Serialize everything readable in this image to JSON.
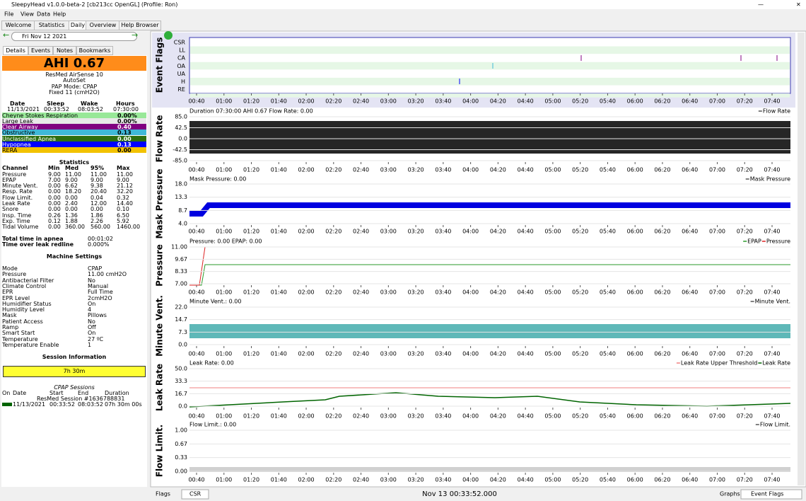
{
  "window_title": "SleepyHead v1.0.0-beta-2 [cb213cc OpenGL] (Profile: Ron)",
  "menu": [
    "File",
    "View",
    "Data",
    "Help"
  ],
  "tabs": [
    "Welcome",
    "Statistics",
    "Daily",
    "Overview",
    "Help Browser"
  ],
  "date": "Fri Nov 12 2021",
  "subtabs": [
    "Details",
    "Events",
    "Notes",
    "Bookmarks"
  ],
  "ahi": "AHI 0.67",
  "machine": [
    "ResMed AirSense 10",
    "AutoSet",
    "PAP Mode: CPAP",
    "Fixed 11 (cmH2O)"
  ],
  "sleep_table": {
    "headers": [
      "Date",
      "Sleep",
      "Wake",
      "Hours"
    ],
    "row": [
      "11/13/2021",
      "00:33:52",
      "08:03:52",
      "07:30:00"
    ]
  },
  "events": [
    {
      "name": "Cheyne Stokes Respiration",
      "value": "0.00%",
      "color": "#98e898"
    },
    {
      "name": "Large Leak",
      "value": "0.00%",
      "color": "#e8e8e8"
    },
    {
      "name": "Clear Airway",
      "value": "0.40",
      "color": "#800080"
    },
    {
      "name": "Obstructive",
      "value": "0.13",
      "color": "#3fb8d8"
    },
    {
      "name": "Unclassified Apnea",
      "value": "0.00",
      "color": "#2e6e10"
    },
    {
      "name": "Hypopnea",
      "value": "0.13",
      "color": "#0000ff"
    },
    {
      "name": "RERA",
      "value": "0.00",
      "color": "#f2c200"
    }
  ],
  "statistics": {
    "title": "Statistics",
    "headers": [
      "Channel",
      "Min",
      "Med",
      "95%",
      "Max"
    ],
    "rows": [
      [
        "Pressure",
        "9.00",
        "11.00",
        "11.00",
        "11.00"
      ],
      [
        "EPAP",
        "7.00",
        "9.00",
        "9.00",
        "9.00"
      ],
      [
        "Minute Vent.",
        "0.00",
        "6.62",
        "9.38",
        "21.12"
      ],
      [
        "Resp. Rate",
        "0.00",
        "18.20",
        "20.40",
        "32.20"
      ],
      [
        "Flow Limit.",
        "0.00",
        "0.00",
        "0.04",
        "0.32"
      ],
      [
        "Leak Rate",
        "0.00",
        "2.40",
        "12.00",
        "14.40"
      ],
      [
        "Snore",
        "0.00",
        "0.00",
        "0.00",
        "0.10"
      ],
      [
        "Insp. Time",
        "0.26",
        "1.36",
        "1.86",
        "6.50"
      ],
      [
        "Exp. Time",
        "0.12",
        "1.88",
        "2.26",
        "5.92"
      ],
      [
        "Tidal Volume",
        "0.00",
        "360.00",
        "560.00",
        "1460.00"
      ]
    ]
  },
  "totals": [
    [
      "Total time in apnea",
      "00:01:02"
    ],
    [
      "Time over leak redline",
      "0.000%"
    ]
  ],
  "settings": {
    "title": "Machine Settings",
    "rows": [
      [
        "Mode",
        "CPAP"
      ],
      [
        "Pressure",
        "11.00 cmH2O"
      ],
      [
        "Antibacterial Filter",
        "No"
      ],
      [
        "Climate Control",
        "Manual"
      ],
      [
        "EPR",
        "Full Time"
      ],
      [
        "EPR Level",
        "2cmH2O"
      ],
      [
        "Humidifier Status",
        "On"
      ],
      [
        "Humidity Level",
        "4"
      ],
      [
        "Mask",
        "Pillows"
      ],
      [
        "Patient Access",
        "No"
      ],
      [
        "Ramp",
        "Off"
      ],
      [
        "Smart Start",
        "On"
      ],
      [
        "Temperature",
        "27 ºC"
      ],
      [
        "Temperature Enable",
        "1"
      ]
    ]
  },
  "session": {
    "title": "Session Information",
    "duration": "7h 30m",
    "cpap_title": "CPAP Sessions",
    "headers": [
      "On",
      "Date",
      "Start",
      "End",
      "Duration"
    ],
    "machine": "ResMed Session #1636788831",
    "row": [
      "11/13/2021",
      "00:33:52",
      "08:03:52",
      "07h 30m 00s"
    ]
  },
  "time_labels": [
    "00:40",
    "01:00",
    "01:20",
    "01:40",
    "02:00",
    "02:20",
    "02:40",
    "03:00",
    "03:20",
    "03:40",
    "04:00",
    "04:20",
    "04:40",
    "05:00",
    "05:20",
    "05:40",
    "06:00",
    "06:20",
    "06:40",
    "07:00",
    "07:20",
    "07:40"
  ],
  "event_flags": {
    "title": "Event Flags",
    "flags": [
      "CSR",
      "LL",
      "CA",
      "OA",
      "UA",
      "H",
      "RE"
    ]
  },
  "graphs": [
    {
      "title": "Flow Rate",
      "header": "Duration 07:30:00 AHI 0.67 Flow Rate: 0.00",
      "legend": [
        "Flow Rate"
      ],
      "yticks": [
        "85.0",
        "42.5",
        "0.0",
        "-42.5",
        "-85.0"
      ]
    },
    {
      "title": "Mask Pressure",
      "header": "Mask Pressure: 0.00",
      "legend": [
        "Mask Pressure"
      ],
      "yticks": [
        "18.0",
        "13.3",
        "8.7",
        "4.0"
      ]
    },
    {
      "title": "Pressure",
      "header": "Pressure: 0.00 EPAP: 0.00",
      "legend": [
        "EPAP",
        "Pressure"
      ],
      "yticks": [
        "11.00",
        "9.67",
        "8.33",
        "7.00"
      ]
    },
    {
      "title": "Minute Vent.",
      "header": "Minute Vent.: 0.00",
      "legend": [
        "Minute Vent."
      ],
      "yticks": [
        "22.0",
        "14.7",
        "7.3",
        "0.0"
      ]
    },
    {
      "title": "Leak Rate",
      "header": "Leak Rate: 0.00",
      "legend": [
        "Leak Rate Upper Threshold",
        "Leak Rate"
      ],
      "yticks": [
        "50.0",
        "33.3",
        "16.7",
        "0.0"
      ]
    },
    {
      "title": "Flow Limit.",
      "header": "Flow Limit.: 0.00",
      "legend": [
        "Flow Limit."
      ],
      "yticks": [
        "1.00",
        "0.67",
        "0.33",
        "0.00"
      ]
    }
  ],
  "bottom": {
    "flags": "Flags",
    "csr": "CSR",
    "time": "Nov 13 00:33:52.000",
    "graphs": "Graphs",
    "event_flags": "Event Flags"
  }
}
